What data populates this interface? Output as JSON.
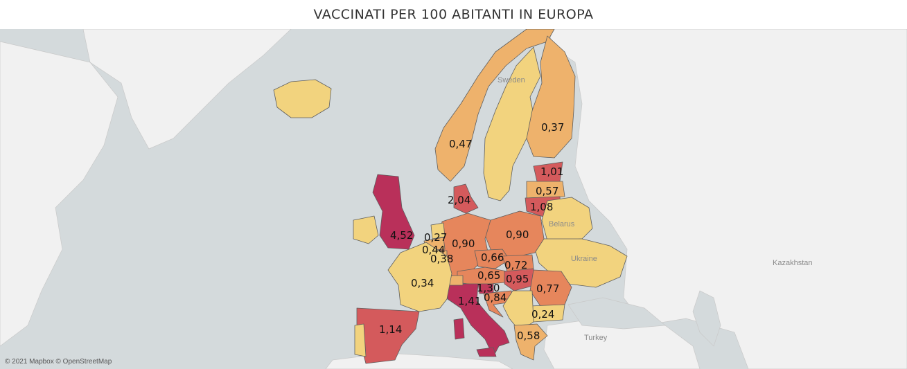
{
  "title": "VACCINATI PER 100 ABITANTI IN EUROPA",
  "attribution": "© 2021 Mapbox © OpenStreetMap",
  "colors": {
    "sea": "#d4dadc",
    "land": "#f1f1f1",
    "border": "#5e5e5e",
    "scale": [
      "#f2d37e",
      "#eeb26c",
      "#e6865c",
      "#d45a5c",
      "#b9305a"
    ]
  },
  "place_labels": [
    "Sweden",
    "Belarus",
    "Ukraine",
    "Kazakhstan",
    "Turkey"
  ],
  "map_data": {
    "type": "choropleth",
    "metric": "vaccinati per 100 abitanti",
    "regions": [
      {
        "key": "uk",
        "value_label": "4,52",
        "color": "#b9305a"
      },
      {
        "key": "denmark",
        "value_label": "2,04",
        "color": "#d45a5c"
      },
      {
        "key": "italy",
        "value_label": "1,41",
        "color": "#b9305a"
      },
      {
        "key": "slovenia",
        "value_label": "1,30",
        "color": "#c0395a"
      },
      {
        "key": "spain",
        "value_label": "1,14",
        "color": "#d45a5c"
      },
      {
        "key": "lithuania",
        "value_label": "1,08",
        "color": "#d45a5c"
      },
      {
        "key": "estonia",
        "value_label": "1,01",
        "color": "#d45a5c"
      },
      {
        "key": "hungary",
        "value_label": "0,95",
        "color": "#d45a5c"
      },
      {
        "key": "germany",
        "value_label": "0,90",
        "color": "#e6865c"
      },
      {
        "key": "poland",
        "value_label": "0,90",
        "color": "#e6865c"
      },
      {
        "key": "croatia",
        "value_label": "0,84",
        "color": "#e6865c"
      },
      {
        "key": "romania",
        "value_label": "0,77",
        "color": "#e6865c"
      },
      {
        "key": "slovakia",
        "value_label": "0,72",
        "color": "#e6865c"
      },
      {
        "key": "czechia",
        "value_label": "0,66",
        "color": "#e6865c"
      },
      {
        "key": "austria",
        "value_label": "0,65",
        "color": "#e6865c"
      },
      {
        "key": "greece",
        "value_label": "0,58",
        "color": "#eeb26c"
      },
      {
        "key": "latvia",
        "value_label": "0,57",
        "color": "#eeb26c"
      },
      {
        "key": "norway",
        "value_label": "0,47",
        "color": "#eeb26c"
      },
      {
        "key": "belgium",
        "value_label": "0,44",
        "color": "#eeb26c"
      },
      {
        "key": "luxembourg",
        "value_label": "0,38",
        "color": "#eeb26c"
      },
      {
        "key": "finland",
        "value_label": "0,37",
        "color": "#eeb26c"
      },
      {
        "key": "france",
        "value_label": "0,34",
        "color": "#f2d37e"
      },
      {
        "key": "netherlands",
        "value_label": "0,27",
        "color": "#f2d37e"
      },
      {
        "key": "bulgaria",
        "value_label": "0,24",
        "color": "#f2d37e"
      }
    ]
  }
}
